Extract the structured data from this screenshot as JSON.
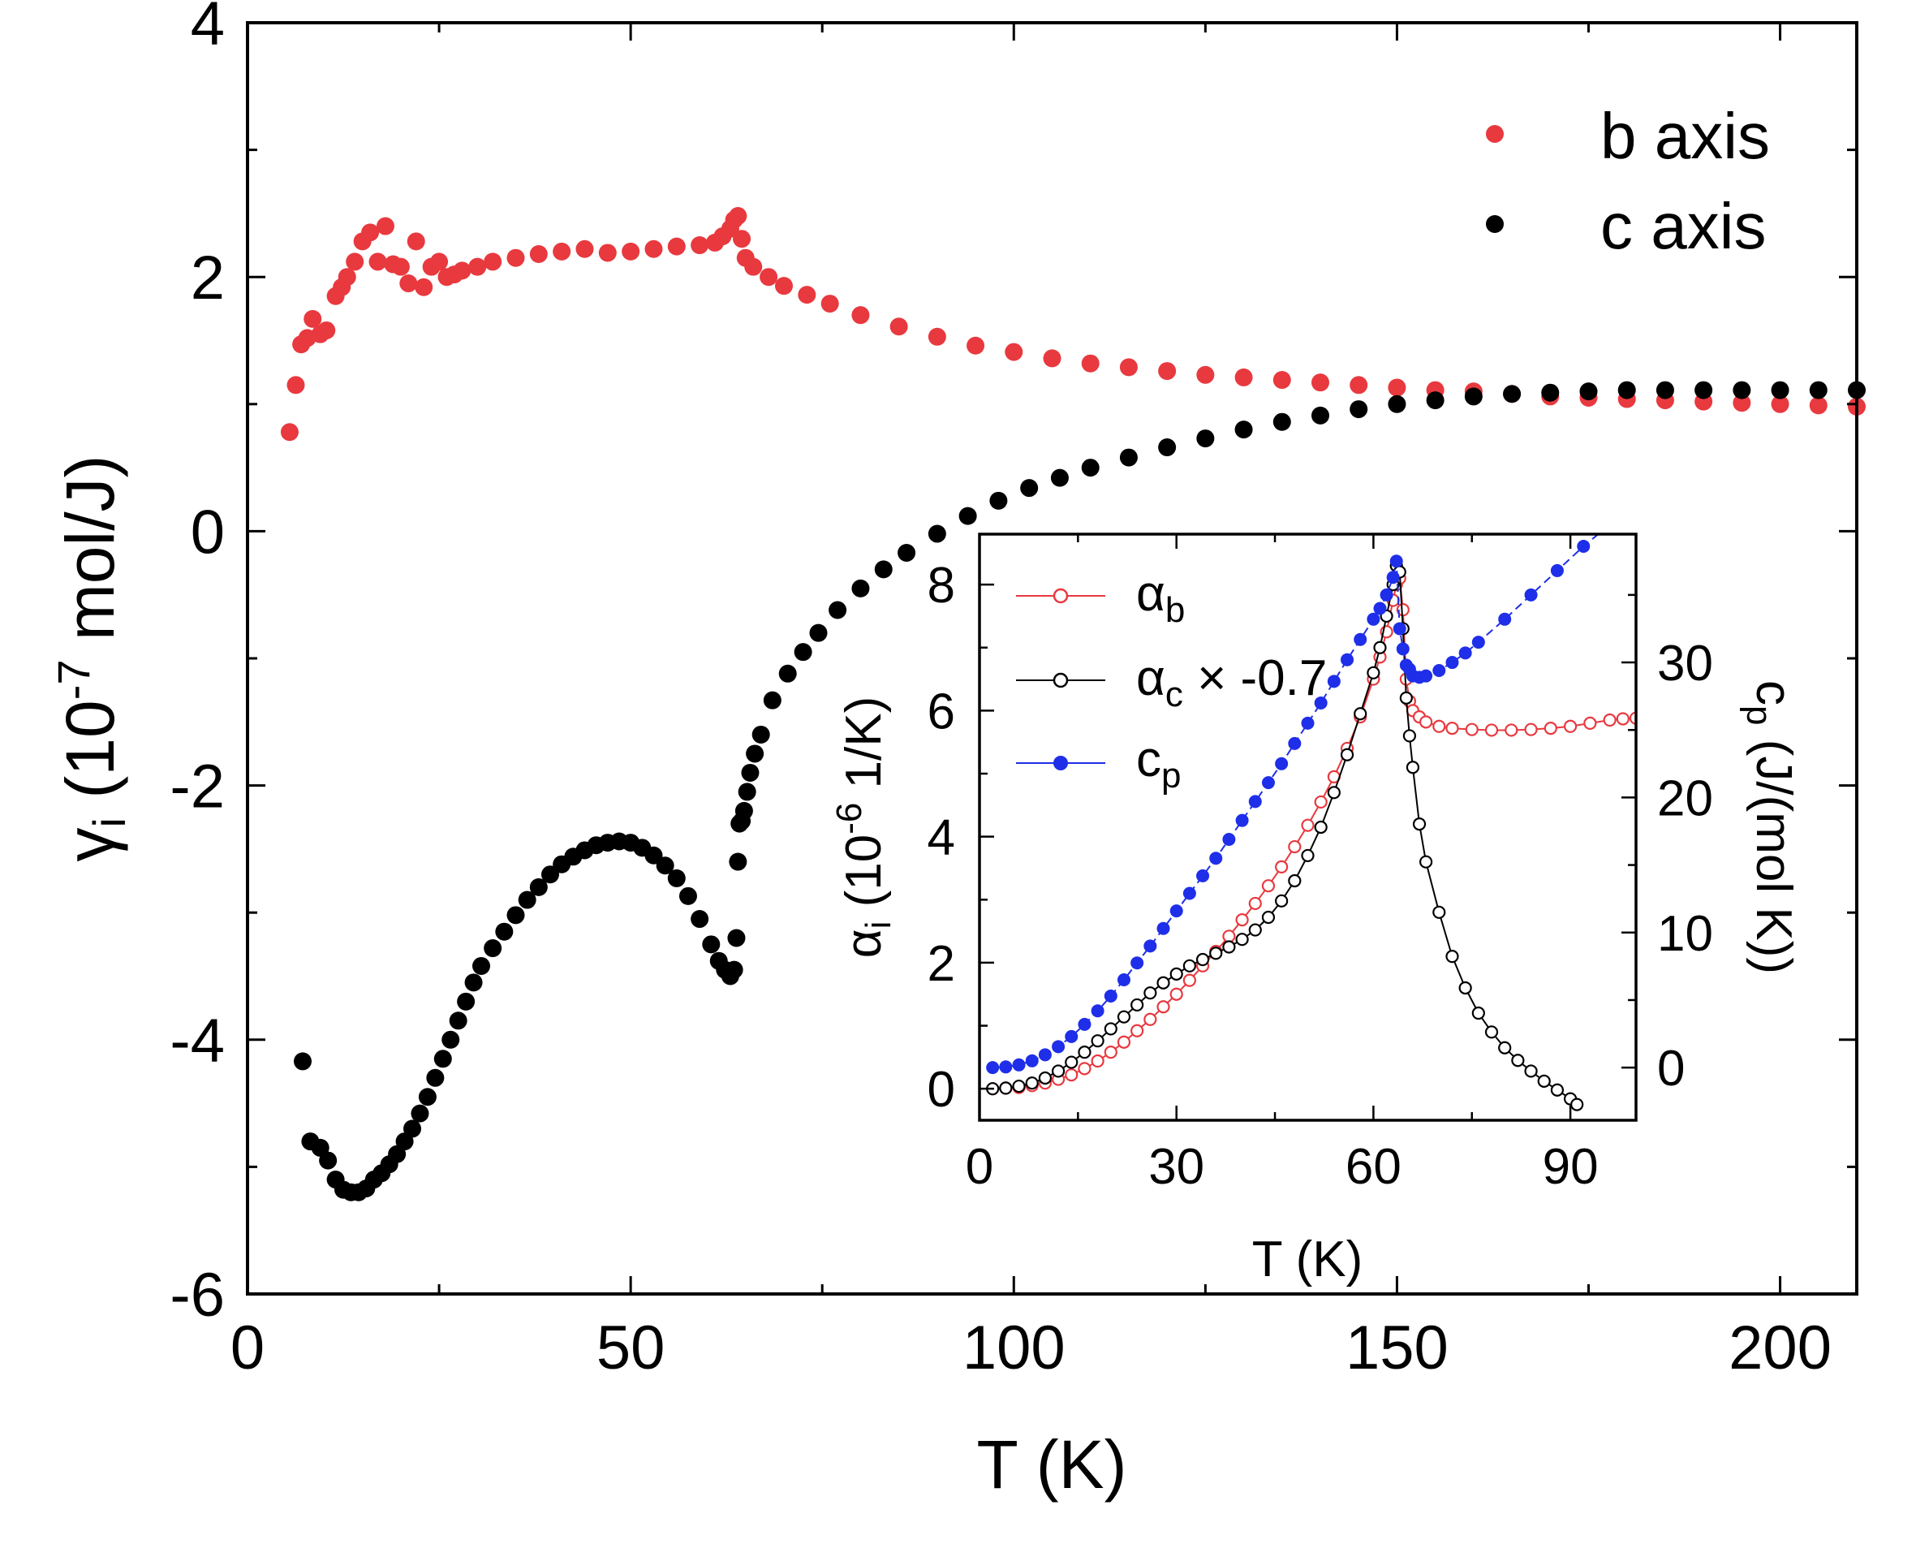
{
  "chart_data": [
    {
      "type": "scatter",
      "role": "main",
      "xlabel": "T (K)",
      "ylabel_parts": {
        "symbol": "γ",
        "sub": "i",
        "prefix": " (10",
        "exp": "-7",
        "suffix": " mol/J)"
      },
      "xlim": [
        0,
        210
      ],
      "ylim": [
        -6,
        4
      ],
      "xticks": [
        0,
        50,
        100,
        150,
        200
      ],
      "xtick_labels": [
        "0",
        "50",
        "100",
        "150",
        "200"
      ],
      "yticks": [
        -6,
        -4,
        -2,
        0,
        2,
        4
      ],
      "ytick_labels": [
        "-6",
        "-4",
        "-2",
        "0",
        "2",
        "4"
      ],
      "legend": [
        "b axis",
        "c axis"
      ],
      "series": [
        {
          "name": "b axis",
          "color": "#e8393f",
          "x": [
            5.5,
            6.3,
            7,
            7.8,
            8.5,
            9.5,
            10.3,
            11.5,
            12.3,
            13,
            14,
            15,
            16,
            17,
            18,
            19,
            20,
            21,
            22,
            23,
            24,
            25,
            26,
            27,
            28,
            30,
            32,
            35,
            38,
            41,
            44,
            47,
            50,
            53,
            56,
            59,
            61,
            62,
            63,
            63.5,
            64,
            64.5,
            65,
            66,
            68,
            70,
            73,
            76,
            80,
            85,
            90,
            95,
            100,
            105,
            110,
            115,
            120,
            125,
            130,
            135,
            140,
            145,
            150,
            155,
            160,
            165,
            170,
            175,
            180,
            185,
            190,
            195,
            200,
            205,
            210
          ],
          "y": [
            0.78,
            1.15,
            1.47,
            1.52,
            1.67,
            1.55,
            1.58,
            1.85,
            1.92,
            2.0,
            2.12,
            2.28,
            2.35,
            2.12,
            2.4,
            2.1,
            2.08,
            1.95,
            2.28,
            1.92,
            2.08,
            2.12,
            2.0,
            2.02,
            2.05,
            2.08,
            2.12,
            2.15,
            2.18,
            2.2,
            2.22,
            2.19,
            2.2,
            2.22,
            2.24,
            2.25,
            2.27,
            2.32,
            2.38,
            2.45,
            2.48,
            2.3,
            2.15,
            2.08,
            2.0,
            1.93,
            1.86,
            1.79,
            1.7,
            1.61,
            1.53,
            1.46,
            1.41,
            1.36,
            1.32,
            1.29,
            1.26,
            1.23,
            1.21,
            1.19,
            1.17,
            1.15,
            1.13,
            1.11,
            1.1,
            1.08,
            1.06,
            1.05,
            1.04,
            1.03,
            1.02,
            1.01,
            1.0,
            0.99,
            0.98
          ]
        },
        {
          "name": "c axis",
          "color": "#000000",
          "x": [
            7.2,
            8.2,
            9.5,
            10.5,
            11.5,
            12.5,
            13.5,
            14.5,
            15.5,
            16.5,
            17.5,
            18.5,
            19.5,
            20.5,
            21.5,
            22.5,
            23.5,
            24.5,
            25.5,
            26.5,
            27.5,
            28.5,
            29.5,
            30.5,
            32,
            33.5,
            35,
            36.5,
            38,
            39.5,
            41,
            42.5,
            44,
            45.5,
            47,
            48.5,
            50,
            51.5,
            53,
            54.5,
            56,
            57.5,
            59,
            60.5,
            61.5,
            62.3,
            63,
            63.5,
            63.8,
            64,
            64.2,
            64.5,
            64.8,
            65.2,
            65.6,
            66.2,
            67,
            68.5,
            70.5,
            72.5,
            74.5,
            77,
            80,
            83,
            86,
            90,
            94,
            98,
            102,
            106,
            110,
            115,
            120,
            125,
            130,
            135,
            140,
            145,
            150,
            155,
            160,
            165,
            170,
            175,
            180,
            185,
            190,
            195,
            200,
            205,
            210
          ],
          "y": [
            -4.17,
            -4.8,
            -4.85,
            -4.95,
            -5.1,
            -5.18,
            -5.2,
            -5.2,
            -5.17,
            -5.1,
            -5.05,
            -4.98,
            -4.9,
            -4.8,
            -4.7,
            -4.58,
            -4.45,
            -4.3,
            -4.15,
            -4.0,
            -3.85,
            -3.7,
            -3.55,
            -3.42,
            -3.28,
            -3.15,
            -3.02,
            -2.9,
            -2.8,
            -2.7,
            -2.62,
            -2.56,
            -2.51,
            -2.47,
            -2.45,
            -2.44,
            -2.45,
            -2.49,
            -2.55,
            -2.63,
            -2.73,
            -2.87,
            -3.05,
            -3.25,
            -3.38,
            -3.45,
            -3.5,
            -3.45,
            -3.2,
            -2.6,
            -2.3,
            -2.28,
            -2.2,
            -2.05,
            -1.9,
            -1.75,
            -1.6,
            -1.33,
            -1.12,
            -0.95,
            -0.8,
            -0.62,
            -0.45,
            -0.3,
            -0.17,
            -0.02,
            0.12,
            0.24,
            0.34,
            0.42,
            0.5,
            0.58,
            0.66,
            0.73,
            0.8,
            0.86,
            0.91,
            0.96,
            1.0,
            1.03,
            1.06,
            1.08,
            1.09,
            1.1,
            1.11,
            1.11,
            1.11,
            1.11,
            1.11,
            1.11,
            1.11
          ]
        }
      ]
    },
    {
      "type": "line",
      "role": "inset",
      "xlabel": "T (K)",
      "ylabel_parts": {
        "symbol": "α",
        "sub": "i",
        "prefix": " (10",
        "exp": "-6",
        "suffix": " 1/K)"
      },
      "y2label_parts": {
        "symbol": "c",
        "sub": "p",
        "suffix": " (J/(mol K))"
      },
      "xlim": [
        0,
        100
      ],
      "ylim": [
        -0.5,
        8.8
      ],
      "y2lim": [
        -3.9,
        39.5
      ],
      "xticks": [
        0,
        30,
        60,
        90
      ],
      "xtick_labels": [
        "0",
        "30",
        "60",
        "90"
      ],
      "yticks": [
        0,
        2,
        4,
        6,
        8
      ],
      "ytick_labels": [
        "0",
        "2",
        "4",
        "6",
        "8"
      ],
      "y2ticks": [
        0,
        10,
        20,
        30
      ],
      "y2tick_labels": [
        "0",
        "10",
        "20",
        "30"
      ],
      "legend": [
        {
          "name": "α",
          "sub": "b",
          "tail": ""
        },
        {
          "name": "α",
          "sub": "c",
          "tail": " × -0.7"
        },
        {
          "name": "c",
          "sub": "p",
          "tail": ""
        }
      ],
      "series": [
        {
          "name": "αb",
          "axis": "left",
          "color": "#e8393f",
          "marker": "open-circle",
          "x": [
            2,
            4,
            6,
            8,
            10,
            12,
            14,
            16,
            18,
            20,
            22,
            24,
            26,
            28,
            30,
            32,
            34,
            36,
            38,
            40,
            42,
            44,
            46,
            48,
            50,
            52,
            54,
            56,
            58,
            60,
            61,
            62,
            63,
            63.5,
            64,
            64.5,
            65,
            65.5,
            66,
            67,
            68,
            70,
            72,
            75,
            78,
            81,
            84,
            87,
            90,
            93,
            96,
            98,
            100
          ],
          "y": [
            0.0,
            0.01,
            0.02,
            0.05,
            0.09,
            0.15,
            0.22,
            0.32,
            0.44,
            0.58,
            0.74,
            0.92,
            1.1,
            1.3,
            1.5,
            1.72,
            1.95,
            2.18,
            2.42,
            2.68,
            2.94,
            3.22,
            3.52,
            3.84,
            4.18,
            4.55,
            4.95,
            5.4,
            5.9,
            6.5,
            6.85,
            7.25,
            7.75,
            8.0,
            8.1,
            7.6,
            6.5,
            6.15,
            6.0,
            5.9,
            5.82,
            5.75,
            5.72,
            5.7,
            5.69,
            5.69,
            5.7,
            5.72,
            5.75,
            5.8,
            5.85,
            5.87,
            5.88
          ]
        },
        {
          "name": "αc × -0.7",
          "axis": "left",
          "color": "#000000",
          "marker": "open-circle",
          "x": [
            2,
            4,
            6,
            8,
            10,
            12,
            14,
            16,
            18,
            20,
            22,
            24,
            26,
            28,
            30,
            32,
            34,
            36,
            38,
            40,
            42,
            44,
            46,
            48,
            50,
            52,
            54,
            56,
            58,
            60,
            61,
            62,
            63,
            63.5,
            64,
            64.5,
            65,
            65.5,
            66,
            67,
            68,
            70,
            72,
            74,
            76,
            78,
            80,
            82,
            84,
            86,
            88,
            90,
            91
          ],
          "y": [
            0.0,
            0.01,
            0.04,
            0.09,
            0.17,
            0.28,
            0.42,
            0.58,
            0.76,
            0.95,
            1.14,
            1.33,
            1.52,
            1.68,
            1.82,
            1.95,
            2.05,
            2.15,
            2.25,
            2.37,
            2.52,
            2.72,
            2.98,
            3.3,
            3.7,
            4.15,
            4.7,
            5.3,
            5.95,
            6.6,
            7.0,
            7.5,
            8.0,
            8.3,
            8.2,
            7.3,
            6.2,
            5.6,
            5.1,
            4.2,
            3.6,
            2.8,
            2.1,
            1.6,
            1.2,
            0.9,
            0.65,
            0.45,
            0.28,
            0.12,
            -0.02,
            -0.16,
            -0.25
          ]
        },
        {
          "name": "cp",
          "axis": "right",
          "color": "#1f2ee8",
          "marker": "filled-circle",
          "x": [
            2,
            4,
            6,
            8,
            10,
            12,
            14,
            16,
            18,
            20,
            22,
            24,
            26,
            28,
            30,
            32,
            34,
            36,
            38,
            40,
            42,
            44,
            46,
            48,
            50,
            52,
            54,
            56,
            58,
            60,
            61,
            62,
            63,
            63.5,
            64,
            64.5,
            65,
            65.5,
            66,
            67,
            68,
            70,
            72,
            74,
            76,
            80,
            84,
            88,
            92,
            96,
            98
          ],
          "y": [
            0.0,
            0.05,
            0.2,
            0.5,
            0.95,
            1.55,
            2.3,
            3.2,
            4.2,
            5.3,
            6.5,
            7.75,
            9.0,
            10.3,
            11.6,
            12.9,
            14.2,
            15.5,
            16.9,
            18.3,
            19.7,
            21.1,
            22.5,
            24.0,
            25.5,
            27.0,
            28.6,
            30.2,
            31.7,
            33.2,
            34.0,
            35.0,
            36.3,
            37.5,
            32.5,
            31.0,
            29.8,
            29.5,
            29.0,
            28.9,
            29.0,
            29.4,
            30.0,
            30.7,
            31.5,
            33.2,
            35.0,
            36.8,
            38.6,
            40.2,
            41.0
          ]
        }
      ]
    }
  ]
}
